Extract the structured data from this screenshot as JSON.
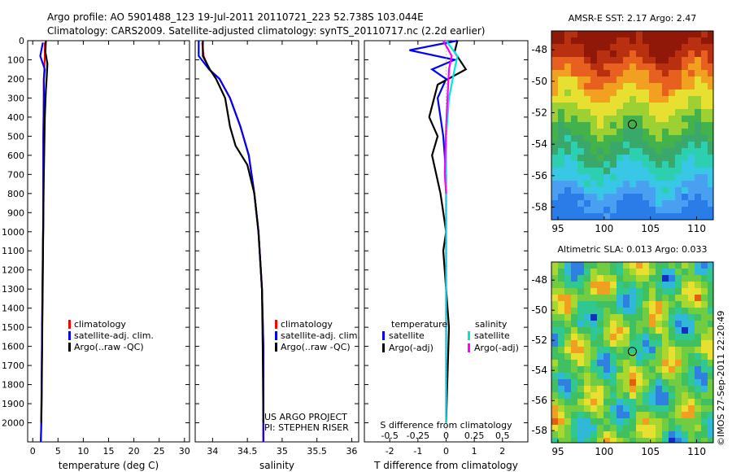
{
  "header": {
    "line1": "Argo profile: AO 5901488_123 19-Jul-2011 20110721_223 52.738S 103.044E",
    "line2": "Climatology: CARS2009. Satellite-adjusted climatology: synTS_20110717.nc (2.2d earlier)"
  },
  "side_text": "©IMOS 27-Sep-2011 22:20:49",
  "chart_data": [
    {
      "id": "temperature",
      "type": "line",
      "xlabel": "temperature (deg C)",
      "ylim": [
        2100,
        0
      ],
      "xlim": [
        -1,
        31
      ],
      "xticks": [
        "0",
        "5",
        "10",
        "15",
        "20",
        "25",
        "30"
      ],
      "xtick_values": [
        0,
        5,
        10,
        15,
        20,
        25,
        30
      ],
      "yticks": [
        "0",
        "100",
        "200",
        "300",
        "400",
        "500",
        "600",
        "700",
        "800",
        "900",
        "1000",
        "1100",
        "1200",
        "1300",
        "1400",
        "1500",
        "1600",
        "1700",
        "1800",
        "1900",
        "2000"
      ],
      "ytick_values": [
        0,
        100,
        200,
        300,
        400,
        500,
        600,
        700,
        800,
        900,
        1000,
        1100,
        1200,
        1300,
        1400,
        1500,
        1600,
        1700,
        1800,
        1900,
        2000
      ],
      "series": [
        {
          "name": "climatology",
          "color": "#ff0000",
          "x": [
            2.4,
            2.4,
            2.3,
            2.2,
            2.2,
            2.1,
            2.1,
            2.1,
            2.0,
            1.9,
            1.8,
            1.7,
            1.6
          ],
          "y": [
            10,
            80,
            150,
            200,
            300,
            500,
            700,
            900,
            1100,
            1400,
            1700,
            2000,
            2100
          ]
        },
        {
          "name": "satellite-adj. clim.",
          "color": "#0000ff",
          "x": [
            2.0,
            1.5,
            2.4,
            2.2,
            2.2,
            2.1,
            2.1,
            2.1,
            2.0,
            1.9,
            1.8,
            1.7,
            1.6
          ],
          "y": [
            10,
            80,
            150,
            200,
            300,
            500,
            700,
            900,
            1100,
            1400,
            1700,
            2000,
            2100
          ]
        },
        {
          "name": "Argo(..raw -QC)",
          "color": "#000000",
          "x": [
            2.6,
            2.5,
            2.9,
            2.8,
            2.6,
            2.4,
            2.3,
            2.2,
            2.1,
            2.0,
            1.9,
            1.8,
            1.7
          ],
          "y": [
            0,
            60,
            120,
            180,
            260,
            400,
            550,
            700,
            900,
            1200,
            1500,
            1800,
            2000
          ]
        }
      ]
    },
    {
      "id": "salinity",
      "type": "line",
      "xlabel": "salinity",
      "ylim": [
        2100,
        0
      ],
      "xlim": [
        33.75,
        36.1
      ],
      "xticks": [
        "34",
        "34.5",
        "35",
        "35.5",
        "36"
      ],
      "xtick_values": [
        34,
        34.5,
        35,
        35.5,
        36
      ],
      "annotations": [
        "US ARGO PROJECT",
        "PI: STEPHEN RISER"
      ],
      "series": [
        {
          "name": "climatology",
          "color": "#ff0000",
          "x": [
            33.85,
            33.87,
            33.95,
            34.1,
            34.25,
            34.4,
            34.52,
            34.6,
            34.66,
            34.71,
            34.73,
            34.73,
            34.73
          ],
          "y": [
            10,
            80,
            150,
            200,
            300,
            450,
            600,
            800,
            1000,
            1300,
            1600,
            1900,
            2100
          ]
        },
        {
          "name": "satellite-adj. clim.",
          "color": "#0000ff",
          "x": [
            33.8,
            33.8,
            33.95,
            34.1,
            34.25,
            34.4,
            34.52,
            34.6,
            34.66,
            34.71,
            34.73,
            34.73,
            34.73
          ],
          "y": [
            0,
            80,
            150,
            200,
            300,
            450,
            600,
            800,
            1000,
            1300,
            1600,
            1900,
            2100
          ]
        },
        {
          "name": "Argo(..raw -QC)",
          "color": "#000000",
          "x": [
            33.86,
            33.86,
            33.96,
            34.05,
            34.18,
            34.25,
            34.33,
            34.5,
            34.6,
            34.66,
            34.71,
            34.72,
            34.73
          ],
          "y": [
            0,
            80,
            150,
            200,
            300,
            450,
            550,
            650,
            800,
            1000,
            1300,
            1600,
            2000
          ]
        }
      ]
    },
    {
      "id": "difference",
      "type": "line",
      "xlabel": "T difference from climatology",
      "xlabel2": "S difference from climatology",
      "ylim": [
        2100,
        0
      ],
      "xlim": [
        -2.9,
        2.9
      ],
      "xticks": [
        "-2",
        "-1",
        "0",
        "1",
        "2"
      ],
      "xtick_values": [
        -2,
        -1,
        0,
        1,
        2
      ],
      "sticks": [
        "-0.5",
        "-0.25",
        "0",
        "0.25",
        "0.5"
      ],
      "legend_titles": [
        "temperature",
        "salinity"
      ],
      "series": [
        {
          "name": "satellite",
          "group": "temperature",
          "color": "#0000ff",
          "x": [
            0.4,
            -1.3,
            0.3,
            -0.5,
            0.0,
            -0.3,
            -0.1,
            0.0,
            0.0,
            0.0,
            0.0
          ],
          "y": [
            0,
            50,
            100,
            150,
            200,
            300,
            500,
            700,
            1000,
            1500,
            2000
          ]
        },
        {
          "name": "Argo(-adj)",
          "group": "temperature",
          "color": "#000000",
          "x": [
            0.4,
            0.3,
            0.7,
            -0.3,
            -0.6,
            -0.3,
            -0.5,
            -0.2,
            0.0,
            -0.1,
            0.1,
            0.0
          ],
          "y": [
            0,
            60,
            150,
            230,
            400,
            500,
            600,
            800,
            1000,
            1100,
            1500,
            2000
          ]
        },
        {
          "name": "satellite",
          "group": "salinity",
          "color": "#00e5e5",
          "x": [
            0.0,
            0.4,
            0.3,
            0.1,
            0.0,
            0.0,
            0.0,
            0.0,
            0.0
          ],
          "y": [
            0,
            80,
            150,
            300,
            500,
            700,
            1000,
            1500,
            2000
          ]
        },
        {
          "name": "Argo(-adj)",
          "group": "salinity",
          "color": "#ff00ff",
          "x": [
            -0.1,
            0.2,
            0.1,
            0.05,
            0.0,
            -0.05,
            0.0
          ],
          "y": [
            0,
            80,
            150,
            300,
            450,
            700,
            800
          ]
        }
      ]
    },
    {
      "id": "sst_map",
      "type": "heatmap",
      "title": "AMSR-E SST: 2.17 Argo: 2.47",
      "xticks": [
        "95",
        "100",
        "105",
        "110"
      ],
      "xtick_values": [
        95,
        100,
        105,
        110
      ],
      "yticks": [
        "-48",
        "-50",
        "-52",
        "-54",
        "-56",
        "-58"
      ],
      "ytick_values": [
        -48,
        -50,
        -52,
        -54,
        -56,
        -58
      ],
      "xlim": [
        94.3,
        111.8
      ],
      "ylim": [
        -58.8,
        -46.8
      ],
      "marker": {
        "lon": 103.044,
        "lat": -52.738
      }
    },
    {
      "id": "sla_map",
      "type": "heatmap",
      "title": "Altimetric SLA: 0.013 Argo: 0.033",
      "xticks": [
        "95",
        "100",
        "105",
        "110"
      ],
      "xtick_values": [
        95,
        100,
        105,
        110
      ],
      "yticks": [
        "-48",
        "-50",
        "-52",
        "-54",
        "-56",
        "-58"
      ],
      "ytick_values": [
        -48,
        -50,
        -52,
        -54,
        -56,
        -58
      ],
      "xlim": [
        94.3,
        111.8
      ],
      "ylim": [
        -58.8,
        -46.8
      ],
      "marker": {
        "lon": 103.044,
        "lat": -52.738
      }
    }
  ]
}
